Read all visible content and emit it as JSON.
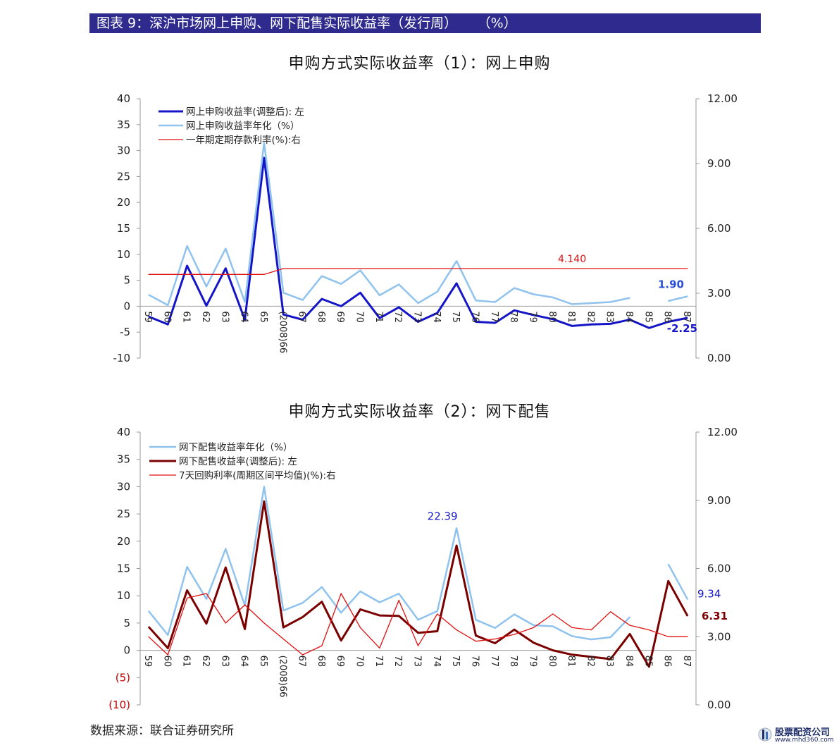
{
  "header": {
    "title": "图表 9：深沪市场网上申购、网下配售实际收益率（发行周）",
    "unit": "（%）"
  },
  "source": "数据来源：联合证券研究所",
  "watermark": {
    "name": "股票配资公司",
    "url": "www.mhd360.com"
  },
  "colors": {
    "header_bg": "#2e2a8e",
    "dark_blue": "#1515c8",
    "light_blue": "#8fc3ee",
    "red": "#e01010",
    "dark_red": "#7a0000"
  },
  "chart_data": [
    {
      "type": "line",
      "title": "申购方式实际收益率（1）：网上申购",
      "categories": [
        "59",
        "60",
        "61",
        "62",
        "63",
        "64",
        "65",
        "(2008)66",
        "67",
        "68",
        "69",
        "70",
        "71",
        "72",
        "73",
        "74",
        "75",
        "76",
        "77",
        "78",
        "79",
        "80",
        "81",
        "82",
        "83",
        "84",
        "85",
        "86",
        "87"
      ],
      "left_axis": {
        "ylim": [
          -10,
          40
        ],
        "ticks": [
          "-10",
          "-5",
          "0",
          "5",
          "10",
          "15",
          "20",
          "25",
          "30",
          "35",
          "40"
        ]
      },
      "right_axis": {
        "ylim": [
          0,
          12
        ],
        "ticks": [
          "0.00",
          "3.00",
          "6.00",
          "9.00",
          "12.00"
        ]
      },
      "legend_position": "top-left",
      "grid": false,
      "series": [
        {
          "name": "网上申购收益率(调整后): 左",
          "axis": "left",
          "color": "#1515c8",
          "width": 3,
          "values": [
            -2.0,
            -3.5,
            7.8,
            0.1,
            7.3,
            -2.6,
            28.6,
            -1.6,
            -2.6,
            1.4,
            0.0,
            2.6,
            -2.3,
            -0.2,
            -3.0,
            -1.3,
            4.4,
            -3.0,
            -3.2,
            -0.8,
            -1.7,
            -2.5,
            -3.8,
            -3.5,
            -3.4,
            -2.6,
            -4.2,
            -3.0,
            -2.25
          ]
        },
        {
          "name": "网上申购收益率年化（%）",
          "axis": "left",
          "color": "#8fc3ee",
          "width": 2.5,
          "values": [
            2.2,
            0.2,
            11.6,
            3.8,
            11.1,
            0.8,
            31.5,
            2.6,
            1.2,
            5.8,
            4.3,
            6.9,
            2.1,
            4.2,
            0.6,
            2.8,
            8.7,
            1.1,
            0.8,
            3.5,
            2.3,
            1.7,
            0.4,
            0.6,
            0.8,
            1.6,
            null,
            1.0,
            1.9
          ]
        },
        {
          "name": "一年期定期存款利率(%):右",
          "axis": "right",
          "color": "#e01010",
          "width": 1.3,
          "values": [
            3.87,
            3.87,
            3.87,
            3.87,
            3.87,
            3.87,
            3.87,
            4.14,
            4.14,
            4.14,
            4.14,
            4.14,
            4.14,
            4.14,
            4.14,
            4.14,
            4.14,
            4.14,
            4.14,
            4.14,
            4.14,
            4.14,
            4.14,
            4.14,
            4.14,
            4.14,
            4.14,
            4.14,
            4.14
          ]
        }
      ],
      "annotations": [
        {
          "text": "4.140",
          "series": 2,
          "index": 22,
          "color": "#e01010"
        },
        {
          "text": "1.90",
          "series": 1,
          "index": 28,
          "color": "#2a50d8"
        },
        {
          "text": "-2.25",
          "series": 0,
          "index": 28,
          "color": "#1515c8"
        }
      ]
    },
    {
      "type": "line",
      "title": "申购方式实际收益率（2）：网下配售",
      "categories": [
        "59",
        "60",
        "61",
        "62",
        "63",
        "64",
        "65",
        "(2008)66",
        "67",
        "68",
        "69",
        "70",
        "71",
        "72",
        "73",
        "74",
        "75",
        "76",
        "77",
        "78",
        "79",
        "80",
        "81",
        "82",
        "83",
        "84",
        "85",
        "86",
        "87"
      ],
      "left_axis": {
        "ylim": [
          -10,
          40
        ],
        "ticks": [
          "(10)",
          "(5)",
          "0",
          "5",
          "10",
          "15",
          "20",
          "25",
          "30",
          "35",
          "40"
        ]
      },
      "right_axis": {
        "ylim": [
          0,
          12
        ],
        "ticks": [
          "0.00",
          "3.00",
          "6.00",
          "9.00",
          "12.00"
        ]
      },
      "legend_position": "top-left",
      "grid": false,
      "series": [
        {
          "name": "网下配售收益率年化（%）",
          "axis": "left",
          "color": "#8fc3ee",
          "width": 2.5,
          "values": [
            7.2,
            2.8,
            15.3,
            9.4,
            18.6,
            8.2,
            30.0,
            7.3,
            8.7,
            11.6,
            6.9,
            10.8,
            8.8,
            10.4,
            5.6,
            7.2,
            22.39,
            5.6,
            4.1,
            6.6,
            4.6,
            4.4,
            2.6,
            2.0,
            2.4,
            6.1,
            null,
            15.8,
            9.34
          ]
        },
        {
          "name": "网下配售收益率(调整后): 左",
          "axis": "left",
          "color": "#7a0000",
          "width": 3,
          "values": [
            4.3,
            0.4,
            11.0,
            4.9,
            15.2,
            3.9,
            27.3,
            4.2,
            6.1,
            8.9,
            1.8,
            7.5,
            6.4,
            6.3,
            3.2,
            3.5,
            19.2,
            2.7,
            1.3,
            3.8,
            1.4,
            0.0,
            -0.8,
            -1.2,
            -1.6,
            3.0,
            -3.0,
            12.7,
            6.31
          ]
        },
        {
          "name": "7天回购利率(周期区间平均值)(%):右",
          "axis": "right",
          "color": "#e01010",
          "width": 1.3,
          "values": [
            3.0,
            2.2,
            4.7,
            4.9,
            3.6,
            4.4,
            3.6,
            2.9,
            2.2,
            2.6,
            4.9,
            3.4,
            2.5,
            4.6,
            2.6,
            4.0,
            3.3,
            2.8,
            2.9,
            3.1,
            3.4,
            4.0,
            3.4,
            3.3,
            4.1,
            3.5,
            3.3,
            3.0,
            3.0
          ]
        }
      ],
      "annotations": [
        {
          "text": "22.39",
          "series": 0,
          "index": 16,
          "color": "#1515c8"
        },
        {
          "text": "9.34",
          "series": 0,
          "index": 28,
          "color": "#1515c8"
        },
        {
          "text": "6.31",
          "series": 1,
          "index": 28,
          "color": "#7a0000"
        }
      ]
    }
  ]
}
